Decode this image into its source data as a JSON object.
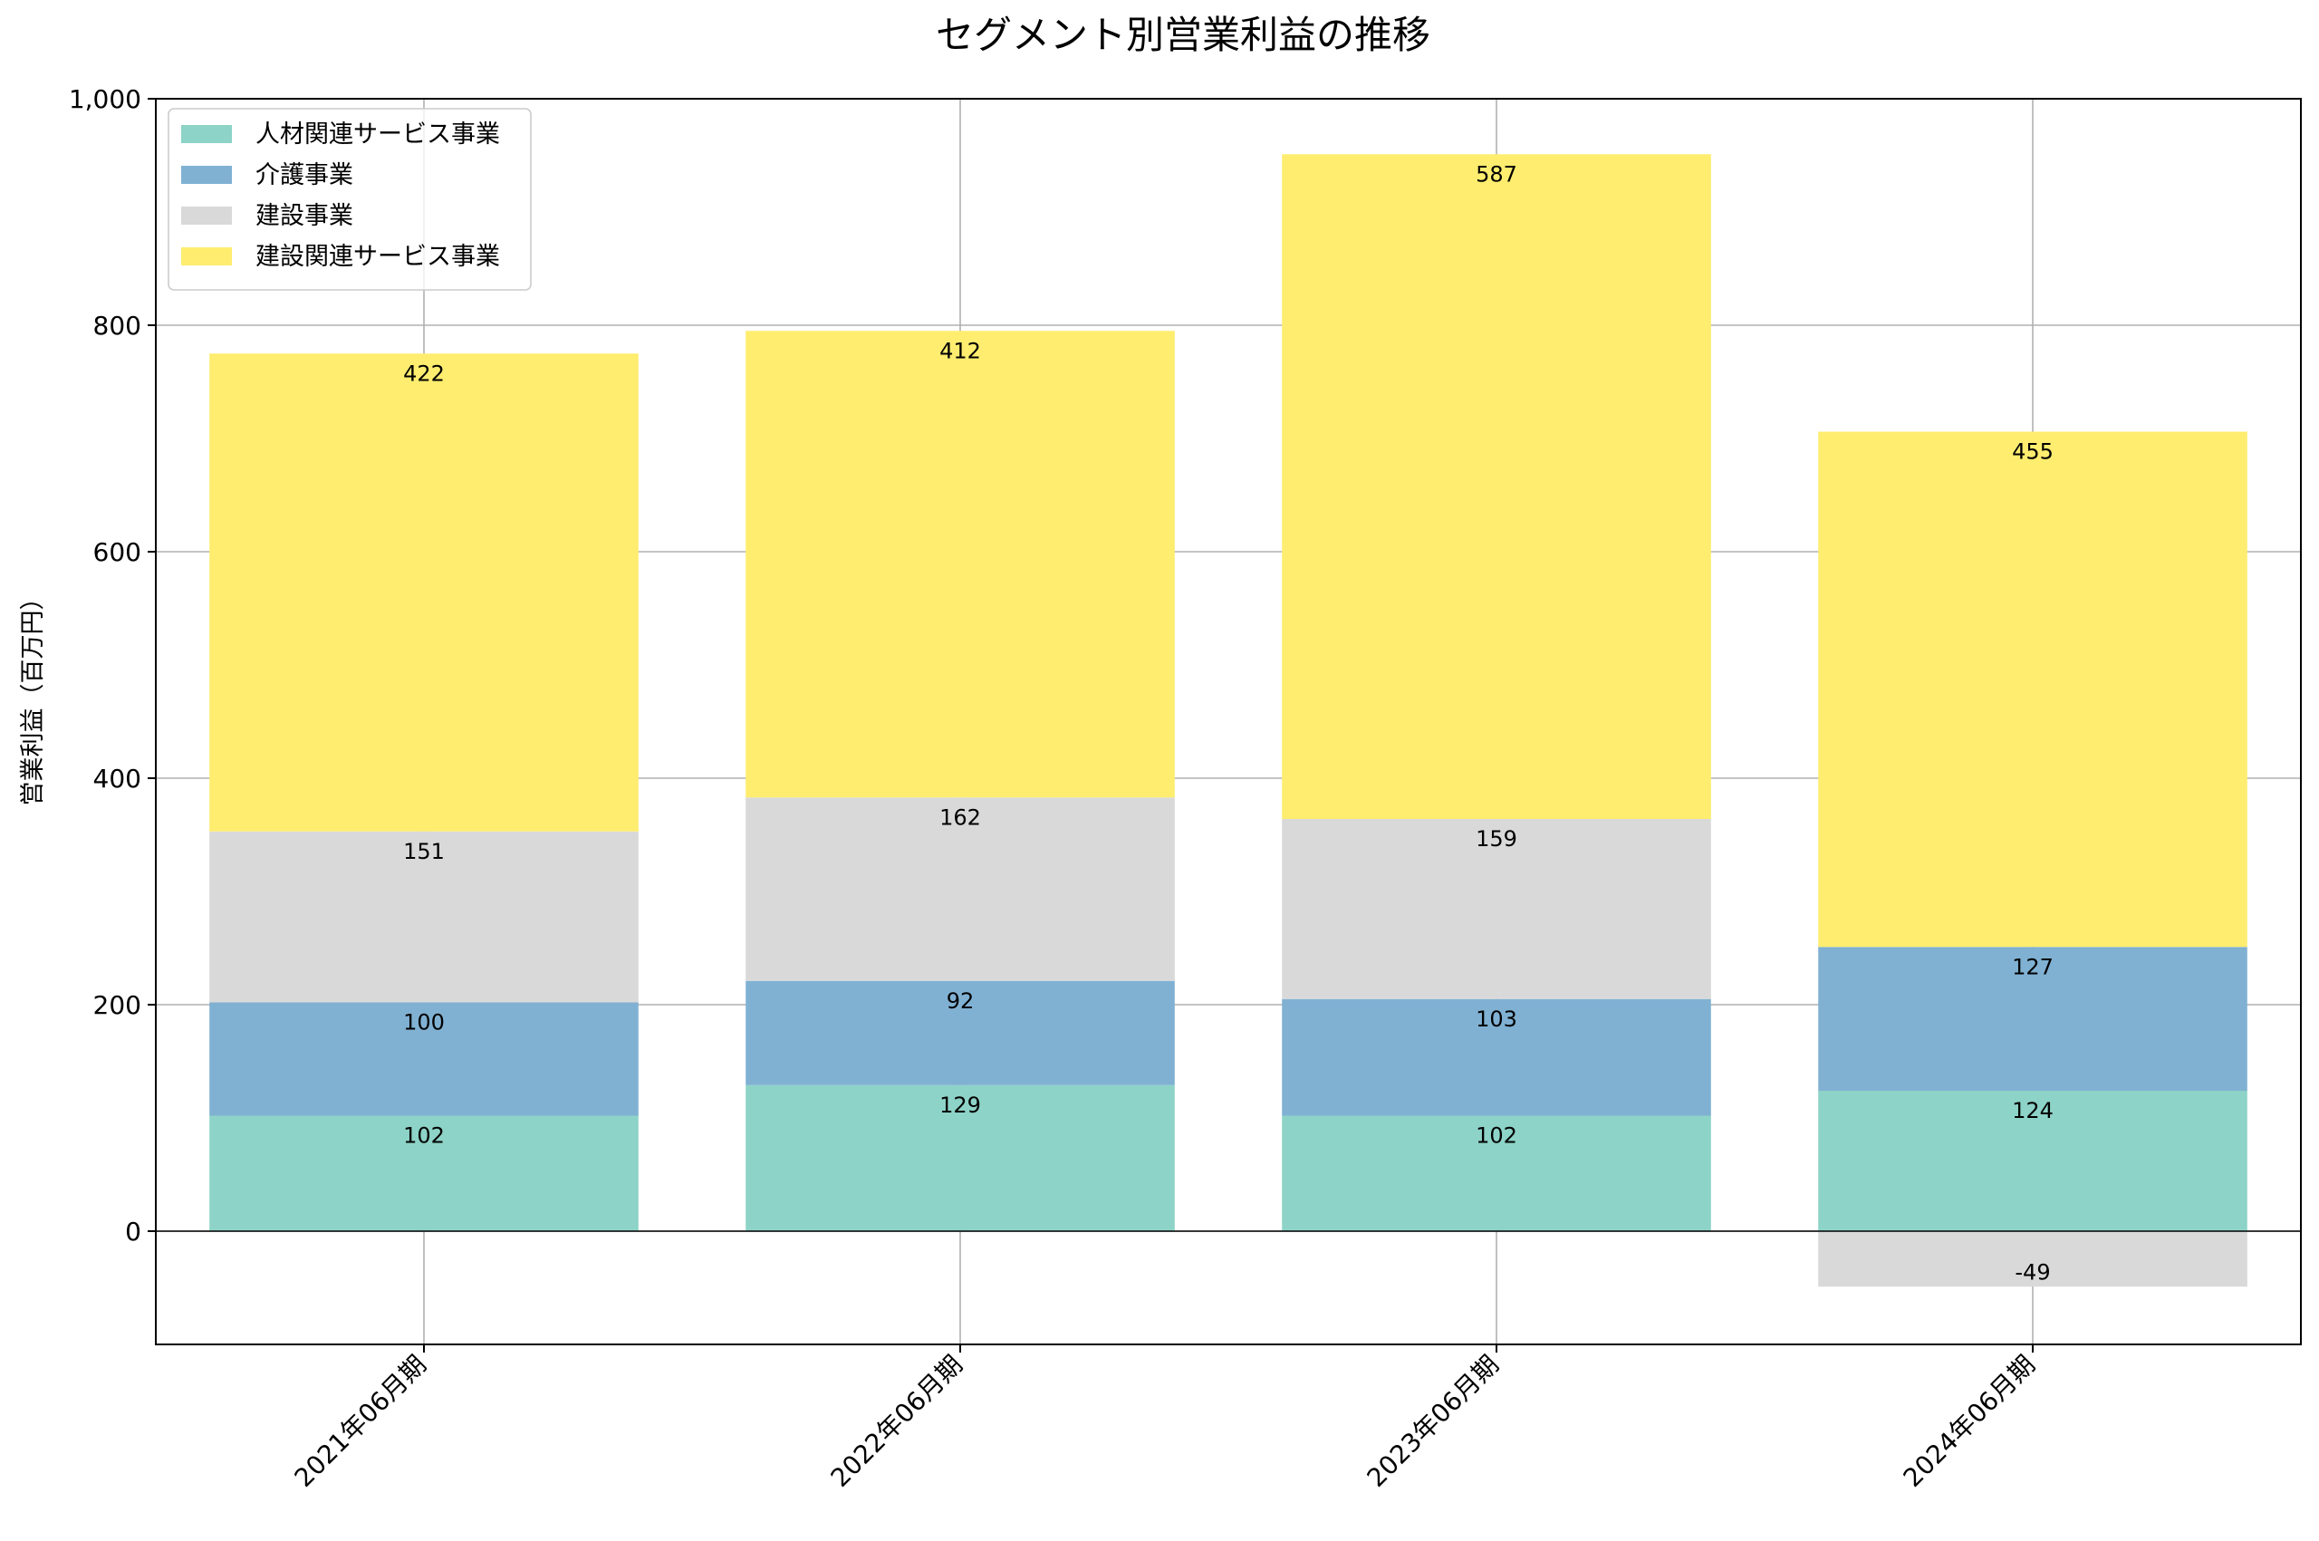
{
  "chart_data": {
    "type": "bar",
    "stacked": true,
    "title": "セグメント別営業利益の推移",
    "ylabel": "営業利益（百万円）",
    "xlabel": "",
    "categories": [
      "2021年06月期",
      "2022年06月期",
      "2023年06月期",
      "2024年06月期"
    ],
    "ylim": [
      -100,
      1000
    ],
    "yticks": [
      0,
      200,
      400,
      600,
      800,
      1000
    ],
    "ytick_labels": [
      "0",
      "200",
      "400",
      "600",
      "800",
      "1,000"
    ],
    "grid": true,
    "legend_position": "upper-left",
    "series": [
      {
        "name": "人材関連サービス事業",
        "color": "#8dd3c7",
        "values": [
          102,
          129,
          102,
          124
        ]
      },
      {
        "name": "介護事業",
        "color": "#80b1d3",
        "values": [
          100,
          92,
          103,
          127
        ]
      },
      {
        "name": "建設事業",
        "color": "#d9d9d9",
        "values": [
          151,
          162,
          159,
          -49
        ]
      },
      {
        "name": "建設関連サービス事業",
        "color": "#ffed6f",
        "values": [
          422,
          412,
          587,
          455
        ]
      }
    ]
  }
}
